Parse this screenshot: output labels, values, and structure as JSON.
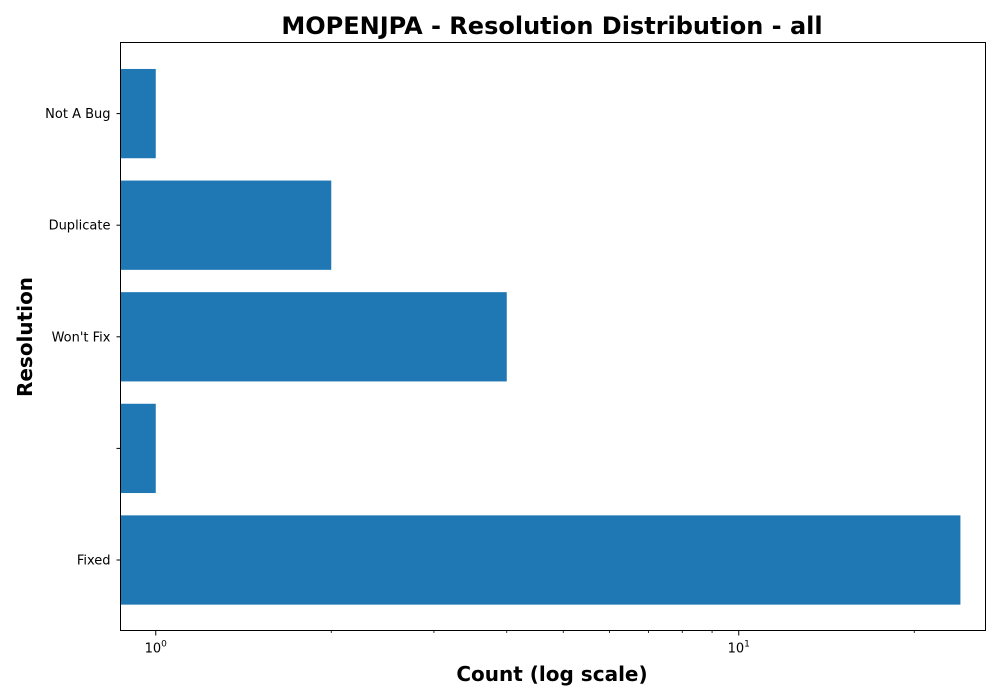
{
  "chart_data": {
    "type": "bar",
    "orientation": "horizontal",
    "title": "MOPENJPA - Resolution Distribution - all",
    "xlabel": "Count (log scale)",
    "ylabel": "Resolution",
    "xscale": "log",
    "xlim": [
      0.87,
      26.5
    ],
    "x_ticks": [
      {
        "value": 1,
        "base": "10",
        "exponent": "0"
      },
      {
        "value": 10,
        "base": "10",
        "exponent": "1"
      }
    ],
    "categories": [
      "Fixed",
      "",
      "Won't Fix",
      "Duplicate",
      "Not A Bug"
    ],
    "values": [
      24,
      1,
      4,
      2,
      1
    ],
    "bar_color": "#1f77b4",
    "grid": false,
    "legend": "none"
  }
}
